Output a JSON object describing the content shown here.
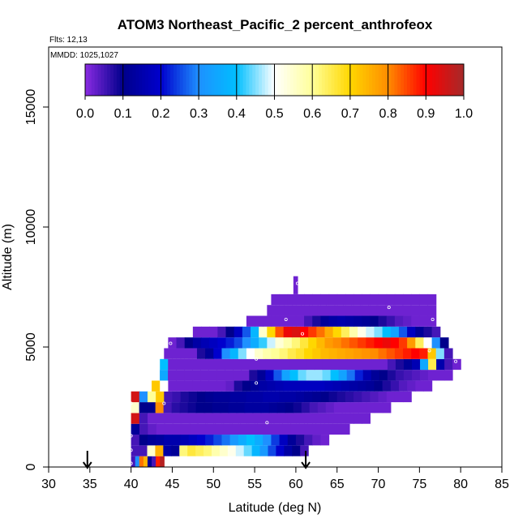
{
  "chart_data": {
    "type": "heatmap",
    "title": "ATOM3 Northeast_Pacific_2 percent_anthrofeox",
    "flights_note": "Flts: 12,13",
    "date_note": "MMDD: 1025,1027",
    "xlabel": "Latitude (deg N)",
    "ylabel": "Altitude (m)",
    "xlim": [
      30,
      85
    ],
    "ylim": [
      0,
      17500
    ],
    "x_ticks": [
      "30",
      "35",
      "40",
      "45",
      "50",
      "55",
      "60",
      "65",
      "70",
      "75",
      "80",
      "85"
    ],
    "y_ticks": [
      "0",
      "5000",
      "10000",
      "15000"
    ],
    "colorbar": {
      "range": [
        0,
        1
      ],
      "ticks": [
        "0.0",
        "0.1",
        "0.2",
        "0.3",
        "0.4",
        "0.5",
        "0.6",
        "0.7",
        "0.8",
        "0.9",
        "1.0"
      ],
      "colors": [
        "#8a2be2",
        "#00008b",
        "#0000cd",
        "#1e90ff",
        "#00bfff",
        "#ffffff",
        "#ffff99",
        "#ffd700",
        "#ff8c00",
        "#ff0000",
        "#a52a2a"
      ]
    },
    "profile_markers_lat": [
      34.7,
      61.2
    ],
    "bands": [
      {
        "alt_bottom": 0,
        "alt_top": 450,
        "lat_start": 40,
        "lat_end": 44,
        "values": [
          0.05,
          0.3,
          0.82,
          0.75,
          0.12,
          0.05,
          0.88,
          0.98
        ]
      },
      {
        "alt_bottom": 450,
        "alt_top": 900,
        "lat_start": 40,
        "lat_end": 61.5,
        "values": [
          0.05,
          0.05,
          0.55,
          0.75,
          0.14,
          0.12,
          0.62,
          0.66,
          0.64,
          0.62,
          0.58,
          0.55,
          0.52,
          0.48,
          0.44,
          0.38,
          0.32,
          0.25,
          0.2,
          0.14,
          0.1,
          0.05
        ]
      },
      {
        "alt_bottom": 900,
        "alt_top": 1350,
        "lat_start": 40,
        "lat_end": 64,
        "values": [
          0.05,
          0.1,
          0.12,
          0.13,
          0.15,
          0.15,
          0.16,
          0.18,
          0.2,
          0.22,
          0.25,
          0.28,
          0.32,
          0.36,
          0.4,
          0.36,
          0.3,
          0.24,
          0.18,
          0.12,
          0.08,
          0.05,
          0.03,
          0.02
        ]
      },
      {
        "alt_bottom": 1350,
        "alt_top": 1800,
        "lat_start": 40,
        "lat_end": 66.5,
        "values": [
          0.12,
          0.05,
          0.03,
          0.02,
          0.02,
          0.02,
          0.02,
          0.02,
          0.02,
          0.02,
          0.02,
          0.02,
          0.02,
          0.02,
          0.02,
          0.02,
          0.02,
          0.02,
          0.02,
          0.02,
          0.02,
          0.02,
          0.02,
          0.02,
          0.02,
          0.02
        ]
      },
      {
        "alt_bottom": 1800,
        "alt_top": 2250,
        "lat_start": 40,
        "lat_end": 69,
        "values": [
          0.95,
          0.05,
          0.02,
          0.02,
          0.02,
          0.02,
          0.02,
          0.02,
          0.02,
          0.02,
          0.02,
          0.02,
          0.02,
          0.02,
          0.02,
          0.02,
          0.02,
          0.02,
          0.02,
          0.02,
          0.02,
          0.02,
          0.02,
          0.02,
          0.02,
          0.02,
          0.02,
          0.02,
          0.02
        ]
      },
      {
        "alt_bottom": 2250,
        "alt_top": 2700,
        "lat_start": 40,
        "lat_end": 71.5,
        "values": [
          0.55,
          0.1,
          0.1,
          0.8,
          0.05,
          0.07,
          0.08,
          0.09,
          0.1,
          0.1,
          0.11,
          0.11,
          0.12,
          0.12,
          0.13,
          0.13,
          0.13,
          0.12,
          0.11,
          0.1,
          0.09,
          0.07,
          0.05,
          0.04,
          0.03,
          0.02,
          0.02,
          0.02,
          0.02,
          0.02,
          0.02,
          0.02
        ]
      },
      {
        "alt_bottom": 2700,
        "alt_top": 3150,
        "lat_start": 40,
        "lat_end": 74,
        "values": [
          0.95,
          0.3,
          0.6,
          0.72,
          0.05,
          0.06,
          0.08,
          0.09,
          0.1,
          0.11,
          0.12,
          0.12,
          0.13,
          0.13,
          0.14,
          0.14,
          0.15,
          0.15,
          0.14,
          0.14,
          0.13,
          0.12,
          0.11,
          0.1,
          0.09,
          0.08,
          0.07,
          0.06,
          0.05,
          0.04,
          0.03,
          0.02,
          0.02,
          0.02
        ]
      },
      {
        "alt_bottom": 3150,
        "alt_top": 3600,
        "lat_start": 42.5,
        "lat_end": 76.5,
        "values": [
          0.72,
          0.5,
          0.02,
          0.02,
          0.02,
          0.02,
          0.02,
          0.02,
          0.02,
          0.03,
          0.08,
          0.1,
          0.12,
          0.14,
          0.15,
          0.16,
          0.17,
          0.17,
          0.18,
          0.18,
          0.18,
          0.17,
          0.16,
          0.15,
          0.14,
          0.13,
          0.12,
          0.1,
          0.08,
          0.06,
          0.04,
          0.03,
          0.02,
          0.02
        ]
      },
      {
        "alt_bottom": 3600,
        "alt_top": 4050,
        "lat_start": 42.5,
        "lat_end": 79,
        "values": [
          0.5,
          0.35,
          0.02,
          0.02,
          0.02,
          0.02,
          0.02,
          0.02,
          0.02,
          0.02,
          0.02,
          0.02,
          0.08,
          0.12,
          0.18,
          0.26,
          0.34,
          0.4,
          0.44,
          0.46,
          0.46,
          0.44,
          0.4,
          0.34,
          0.28,
          0.22,
          0.16,
          0.12,
          0.1,
          0.08,
          0.06,
          0.05,
          0.04,
          0.03,
          0.02,
          0.02,
          0.02
        ]
      },
      {
        "alt_bottom": 4050,
        "alt_top": 4500,
        "lat_start": 43.5,
        "lat_end": 80,
        "values": [
          0.4,
          0.02,
          0.02,
          0.02,
          0.02,
          0.02,
          0.02,
          0.02,
          0.02,
          0.02,
          0.02,
          0.02,
          0.02,
          0.02,
          0.02,
          0.02,
          0.02,
          0.02,
          0.02,
          0.02,
          0.02,
          0.02,
          0.02,
          0.02,
          0.02,
          0.02,
          0.02,
          0.02,
          0.05,
          0.08,
          0.12,
          0.16,
          0.35,
          0.65,
          0.15,
          0.05,
          0.02
        ]
      },
      {
        "alt_bottom": 4500,
        "alt_top": 4950,
        "lat_start": 44,
        "lat_end": 79,
        "values": [
          0.02,
          0.02,
          0.02,
          0.02,
          0.08,
          0.12,
          0.2,
          0.3,
          0.38,
          0.45,
          0.5,
          0.55,
          0.58,
          0.6,
          0.62,
          0.65,
          0.67,
          0.7,
          0.72,
          0.74,
          0.75,
          0.76,
          0.77,
          0.78,
          0.79,
          0.8,
          0.82,
          0.84,
          0.86,
          0.88,
          0.9,
          0.88,
          0.72,
          0.45,
          0.05
        ]
      },
      {
        "alt_bottom": 4950,
        "alt_top": 5400,
        "lat_start": 44.5,
        "lat_end": 78.5,
        "values": [
          0.02,
          0.05,
          0.1,
          0.14,
          0.16,
          0.18,
          0.2,
          0.22,
          0.25,
          0.3,
          0.36,
          0.42,
          0.48,
          0.54,
          0.58,
          0.62,
          0.66,
          0.7,
          0.74,
          0.78,
          0.8,
          0.82,
          0.84,
          0.86,
          0.88,
          0.9,
          0.92,
          0.9,
          0.86,
          0.78,
          0.64,
          0.5,
          0.3,
          0.1
        ]
      },
      {
        "alt_bottom": 5400,
        "alt_top": 5850,
        "lat_start": 47.5,
        "lat_end": 77.5,
        "values": [
          0.02,
          0.02,
          0.02,
          0.05,
          0.1,
          0.18,
          0.26,
          0.38,
          0.55,
          0.7,
          0.84,
          0.92,
          0.94,
          0.9,
          0.86,
          0.82,
          0.76,
          0.7,
          0.64,
          0.58,
          0.52,
          0.48,
          0.45,
          0.4,
          0.34,
          0.26,
          0.18,
          0.12,
          0.08,
          0.05
        ]
      },
      {
        "alt_bottom": 5850,
        "alt_top": 6300,
        "lat_start": 54,
        "lat_end": 77,
        "values": [
          0.02,
          0.02,
          0.02,
          0.02,
          0.02,
          0.02,
          0.02,
          0.05,
          0.08,
          0.12,
          0.14,
          0.15,
          0.14,
          0.13,
          0.12,
          0.1,
          0.08,
          0.06,
          0.04,
          0.03,
          0.02,
          0.02,
          0.02
        ]
      },
      {
        "alt_bottom": 6300,
        "alt_top": 6750,
        "lat_start": 56.5,
        "lat_end": 77,
        "values": [
          0.02,
          0.02,
          0.02,
          0.02,
          0.02,
          0.02,
          0.02,
          0.02,
          0.02,
          0.02,
          0.02,
          0.02,
          0.02,
          0.02,
          0.02,
          0.02,
          0.02,
          0.02,
          0.02,
          0.02
        ]
      },
      {
        "alt_bottom": 6750,
        "alt_top": 7200,
        "lat_start": 57,
        "lat_end": 77,
        "values": [
          0.02,
          0.02,
          0.02,
          0.02,
          0.02,
          0.02,
          0.02,
          0.02,
          0.02,
          0.02,
          0.02,
          0.02,
          0.02,
          0.02,
          0.02,
          0.02,
          0.02,
          0.02,
          0.02,
          0.02
        ]
      },
      {
        "alt_bottom": 7200,
        "alt_top": 7600,
        "lat_start": 59.7,
        "lat_end": 60.2,
        "values": [
          0.02
        ]
      },
      {
        "alt_bottom": 7600,
        "alt_top": 7950,
        "lat_start": 59.7,
        "lat_end": 60.2,
        "values": [
          0.02
        ]
      }
    ],
    "sample_points": [
      {
        "lat": 40,
        "alt": 150
      },
      {
        "lat": 40,
        "alt": 700
      },
      {
        "lat": 40,
        "alt": 1300
      },
      {
        "lat": 40,
        "alt": 2650
      },
      {
        "lat": 44.8,
        "alt": 5150
      },
      {
        "lat": 44,
        "alt": 2650
      },
      {
        "lat": 56.5,
        "alt": 1850
      },
      {
        "lat": 55.2,
        "alt": 3500
      },
      {
        "lat": 55.2,
        "alt": 4500
      },
      {
        "lat": 58.8,
        "alt": 6150
      },
      {
        "lat": 60.8,
        "alt": 5550
      },
      {
        "lat": 60.2,
        "alt": 7650
      },
      {
        "lat": 71.3,
        "alt": 6650
      },
      {
        "lat": 76.6,
        "alt": 6150
      },
      {
        "lat": 76.8,
        "alt": 7350
      },
      {
        "lat": 76.2,
        "alt": 4850
      },
      {
        "lat": 79.4,
        "alt": 4400
      }
    ]
  }
}
